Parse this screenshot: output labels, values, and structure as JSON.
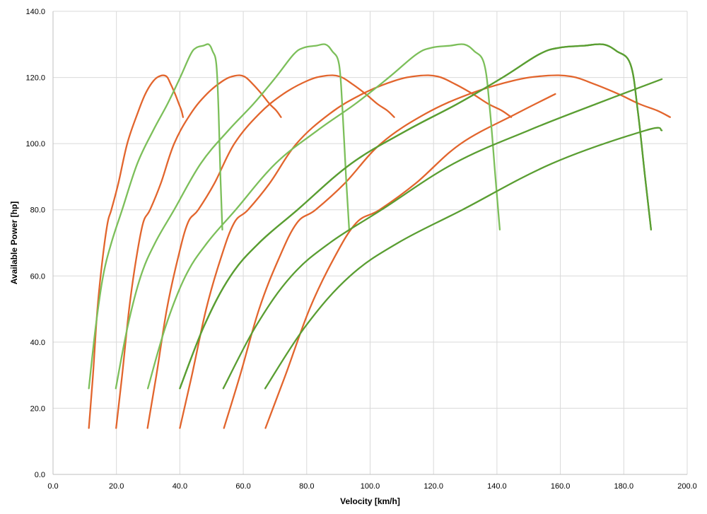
{
  "chart_data": {
    "type": "line",
    "title": "",
    "xlabel": "Velocity [km/h]",
    "ylabel": "Available Power [hp]",
    "xlim": [
      0,
      200
    ],
    "ylim": [
      0,
      140
    ],
    "x_ticks": [
      "0.0",
      "20.0",
      "40.0",
      "60.0",
      "80.0",
      "100.0",
      "120.0",
      "140.0",
      "160.0",
      "180.0",
      "200.0"
    ],
    "y_ticks": [
      "0.0",
      "20.0",
      "40.0",
      "60.0",
      "80.0",
      "100.0",
      "120.0",
      "140.0"
    ],
    "grid": true,
    "legend": "none",
    "colors": {
      "orange": "#E2652D",
      "light_green": "#7CBF5A",
      "dark_green": "#5A9E32"
    },
    "series": [
      {
        "color": "orange",
        "x": [
          11.3,
          12.6,
          14.0,
          15.6,
          17.2,
          18.4,
          20.6,
          23.4,
          26.6,
          29.1,
          31.7,
          33.9,
          35.8,
          37.1,
          38.5,
          39.7,
          40.5,
          41.0
        ],
        "y": [
          14,
          30,
          50,
          65,
          76,
          80,
          88,
          100,
          109,
          115,
          119,
          120.5,
          120.3,
          118,
          115,
          112,
          110,
          108
        ]
      },
      {
        "color": "orange",
        "x": [
          19.9,
          21.8,
          24.0,
          26.2,
          28.4,
          30.6,
          34.0,
          38.2,
          43.4,
          48.5,
          53.6,
          57.3,
          60.3,
          63.0,
          65.8,
          68.3,
          70.4,
          71.9
        ],
        "y": [
          14,
          30,
          50,
          65,
          76,
          80,
          88,
          100,
          109,
          115,
          119,
          120.5,
          120.3,
          118,
          115,
          112,
          110,
          108
        ]
      },
      {
        "color": "orange",
        "x": [
          29.8,
          32.6,
          35.9,
          39.3,
          42.5,
          45.8,
          50.9,
          57.2,
          65.0,
          72.6,
          80.2,
          85.8,
          90.4,
          94.4,
          98.6,
          102.3,
          105.4,
          107.6
        ],
        "y": [
          14,
          30,
          50,
          65,
          76,
          80,
          88,
          100,
          109,
          115,
          119,
          120.5,
          120.3,
          118,
          115,
          112,
          110,
          108
        ]
      },
      {
        "color": "orange",
        "x": [
          40.0,
          43.8,
          48.3,
          52.8,
          57.1,
          61.5,
          68.3,
          76.8,
          87.2,
          97.5,
          107.7,
          115.2,
          121.3,
          126.8,
          132.4,
          137.3,
          141.5,
          144.5
        ],
        "y": [
          14,
          30,
          50,
          65,
          76,
          80,
          88,
          100,
          109,
          115,
          119,
          120.5,
          120.3,
          118,
          115,
          112,
          110,
          108
        ]
      },
      {
        "color": "orange",
        "x": [
          53.9,
          59.0,
          65.0,
          71.1,
          76.9,
          82.8,
          92.0,
          103.4,
          117.4,
          131.3,
          145.0,
          155.1,
          163.4,
          170.7,
          178.3,
          184.9,
          190.5,
          194.6
        ],
        "y": [
          14,
          30,
          50,
          65,
          76,
          80,
          88,
          100,
          109,
          115,
          119,
          120.5,
          120.3,
          118,
          115,
          112,
          110,
          108
        ]
      },
      {
        "color": "orange",
        "x": [
          67.0,
          73.3,
          80.9,
          88.4,
          95.6,
          103.0,
          114.4,
          128.6,
          146.0,
          158.4
        ],
        "y": [
          14,
          30,
          50,
          65,
          76,
          80,
          88,
          100,
          109,
          115
        ]
      },
      {
        "color": "light_green",
        "x": [
          11.3,
          13.5,
          15.8,
          18.4,
          21.8,
          26.6,
          31.6,
          36.1,
          40.1,
          43.4,
          45.2,
          47.4,
          49.1,
          50.3,
          51.5,
          52.2,
          52.8,
          53.4
        ],
        "y": [
          26,
          45,
          60,
          70,
          80,
          94,
          104,
          112,
          120,
          127,
          129,
          129.6,
          130,
          128,
          124,
          110,
          90,
          74
        ]
      },
      {
        "color": "light_green",
        "x": [
          19.8,
          23.6,
          27.7,
          32.2,
          38.2,
          46.6,
          55.3,
          63.2,
          70.2,
          75.9,
          79.1,
          83.0,
          85.9,
          88.0,
          90.2,
          91.3,
          92.4,
          93.4
        ],
        "y": [
          26,
          45,
          60,
          70,
          80,
          94,
          104,
          112,
          120,
          127,
          129,
          129.6,
          130,
          128,
          124,
          110,
          90,
          74
        ]
      },
      {
        "color": "light_green",
        "x": [
          29.9,
          35.6,
          41.8,
          48.6,
          57.6,
          70.2,
          83.4,
          95.3,
          105.9,
          114.6,
          119.4,
          125.2,
          129.6,
          132.8,
          136.0,
          137.8,
          139.5,
          140.9
        ],
        "y": [
          26,
          45,
          60,
          70,
          80,
          94,
          104,
          112,
          120,
          127,
          129,
          129.6,
          130,
          128,
          124,
          110,
          90,
          74
        ]
      },
      {
        "color": "dark_green",
        "x": [
          40.0,
          47.7,
          56.0,
          65.0,
          77.1,
          94.1,
          111.6,
          127.5,
          141.8,
          153.3,
          159.7,
          167.5,
          173.4,
          177.7,
          182.1,
          184.4,
          186.7,
          188.6
        ],
        "y": [
          26,
          45,
          60,
          70,
          80,
          94,
          104,
          112,
          120,
          127,
          129,
          129.6,
          130,
          128,
          124,
          110,
          90,
          74
        ]
      },
      {
        "color": "dark_green",
        "x": [
          40.0,
          47.7,
          56.0,
          65.0,
          77.1,
          94.1,
          111.6,
          127.5,
          141.8,
          153.3,
          159.7,
          167.5,
          173.4,
          177.7,
          182.1,
          184.4,
          186.7,
          188.6
        ],
        "y": [
          26,
          45,
          60,
          70,
          80,
          94,
          104,
          112,
          120,
          127,
          129,
          129.6,
          130,
          128,
          124,
          110,
          90,
          74
        ]
      },
      {
        "color": "dark_green",
        "x": [
          53.7,
          64.1,
          75.2,
          87.3,
          103.6,
          126.4,
          150.0,
          171.3,
          192.0
        ],
        "y": [
          26,
          45,
          60,
          70,
          80,
          94,
          104,
          112,
          119.5
        ]
      },
      {
        "color": "dark_green",
        "x": [
          66.9,
          79.8,
          93.7,
          108.8,
          129.1,
          157.4,
          186.9,
          192.0
        ],
        "y": [
          26,
          45,
          60,
          70,
          80,
          94,
          104,
          104
        ]
      }
    ]
  }
}
